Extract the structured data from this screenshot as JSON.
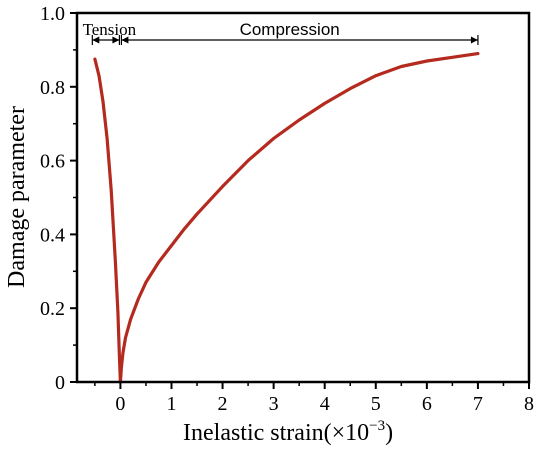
{
  "chart_data": {
    "type": "line",
    "xlabel": "Inelastic strain(×10",
    "xlabel_exponent": "−3",
    "xlabel_close": ")",
    "ylabel": "Damage parameter",
    "xlim": [
      -0.85,
      8
    ],
    "ylim": [
      0,
      1.0
    ],
    "xticks": [
      0,
      1,
      2,
      3,
      4,
      5,
      6,
      7,
      8
    ],
    "yticks": [
      0,
      0.2,
      0.4,
      0.6,
      0.8,
      1.0
    ],
    "ytick_labels": [
      "0",
      "0.2",
      "0.4",
      "0.6",
      "0.8",
      "1.0"
    ],
    "grid": false,
    "line_color": "#b52a1f",
    "series": [
      {
        "x": [
          -0.5,
          -0.42,
          -0.34,
          -0.26,
          -0.18,
          -0.1,
          -0.05,
          -0.02,
          0.0
        ],
        "y": [
          0.875,
          0.83,
          0.76,
          0.66,
          0.52,
          0.33,
          0.19,
          0.07,
          0.0
        ]
      },
      {
        "x": [
          0.0,
          0.02,
          0.05,
          0.1,
          0.2,
          0.35,
          0.5,
          0.75,
          1.0,
          1.25,
          1.5,
          2.0,
          2.5,
          3.0,
          3.5,
          4.0,
          4.5,
          5.0,
          5.5,
          6.0,
          6.5,
          7.0
        ],
        "y": [
          0.0,
          0.04,
          0.08,
          0.12,
          0.17,
          0.225,
          0.27,
          0.325,
          0.37,
          0.415,
          0.455,
          0.53,
          0.6,
          0.66,
          0.71,
          0.755,
          0.795,
          0.83,
          0.855,
          0.87,
          0.88,
          0.89
        ]
      }
    ],
    "annotations": [
      {
        "text": "Tension",
        "x_start": -0.55,
        "x_end": 0.0
      },
      {
        "text": "Compression",
        "x_start": 0.0,
        "x_end": 7.0
      }
    ]
  }
}
